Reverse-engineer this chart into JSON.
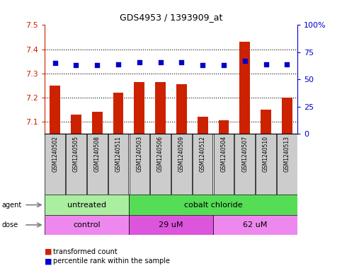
{
  "title": "GDS4953 / 1393909_at",
  "samples": [
    "GSM1240502",
    "GSM1240505",
    "GSM1240508",
    "GSM1240511",
    "GSM1240503",
    "GSM1240506",
    "GSM1240509",
    "GSM1240512",
    "GSM1240504",
    "GSM1240507",
    "GSM1240510",
    "GSM1240513"
  ],
  "red_values": [
    7.25,
    7.13,
    7.14,
    7.22,
    7.265,
    7.265,
    7.255,
    7.12,
    7.105,
    7.43,
    7.15,
    7.2
  ],
  "blue_values": [
    65,
    63,
    63,
    64,
    66,
    66,
    66,
    63,
    63,
    67,
    64,
    64
  ],
  "ylim_left": [
    7.05,
    7.5
  ],
  "ylim_right": [
    0,
    100
  ],
  "yticks_left": [
    7.1,
    7.2,
    7.3,
    7.4,
    7.5
  ],
  "yticks_right": [
    0,
    25,
    50,
    75,
    100
  ],
  "ytick_labels_right": [
    "0",
    "25",
    "50",
    "75",
    "100%"
  ],
  "agent_labels": [
    {
      "label": "untreated",
      "start": 0,
      "end": 4,
      "color": "#aaeea0"
    },
    {
      "label": "cobalt chloride",
      "start": 4,
      "end": 12,
      "color": "#55dd55"
    }
  ],
  "dose_colors_alt": [
    "#ee88ee",
    "#dd55dd"
  ],
  "dose_labels": [
    {
      "label": "control",
      "start": 0,
      "end": 4,
      "color": "#ee88ee"
    },
    {
      "label": "29 uM",
      "start": 4,
      "end": 8,
      "color": "#dd55dd"
    },
    {
      "label": "62 uM",
      "start": 8,
      "end": 12,
      "color": "#ee88ee"
    }
  ],
  "bar_color": "#cc2200",
  "dot_color": "#0000cc",
  "left_axis_color": "#cc2200",
  "right_axis_color": "#0000cc",
  "sample_box_color": "#cccccc",
  "legend_items": [
    {
      "label": "transformed count",
      "color": "#cc2200"
    },
    {
      "label": "percentile rank within the sample",
      "color": "#0000cc"
    }
  ]
}
